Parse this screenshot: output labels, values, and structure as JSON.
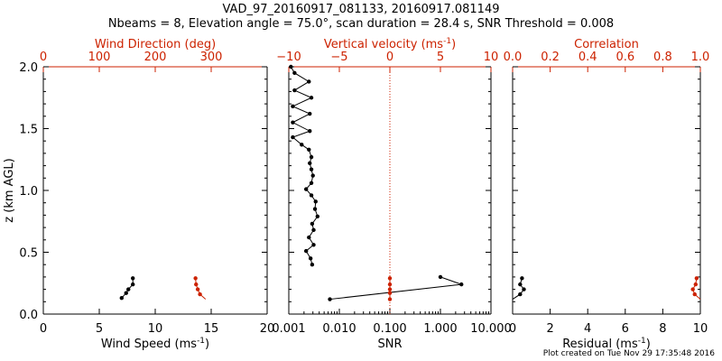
{
  "header": {
    "title": "VAD_97_20160917_081133, 20160917.081149",
    "subtitle": "Nbeams = 8, Elevation angle = 75.0°, scan duration = 28.4 s, SNR Threshold = 0.008"
  },
  "footer": {
    "text": "Plot created on Tue Nov 29 17:35:48 2016"
  },
  "colors": {
    "primary": "#000000",
    "secondary": "#cc2200"
  },
  "chart_data": [
    {
      "type": "line",
      "ylabel": "z (km AGL)",
      "ylim": [
        0,
        2.0
      ],
      "yticks": [
        "0.0",
        "0.5",
        "1.0",
        "1.5",
        "2.0"
      ],
      "bottom_axis": {
        "label": "Wind Speed (ms",
        "label_sup": "-1",
        "label_end": ")",
        "lim": [
          0,
          20
        ],
        "ticks": [
          0,
          5,
          10,
          15,
          20
        ],
        "tick_labels": [
          "0",
          "5",
          "10",
          "15",
          "20"
        ]
      },
      "top_axis": {
        "label": "Wind Direction (deg)",
        "lim": [
          0,
          400
        ],
        "ticks": [
          0,
          100,
          200,
          300
        ],
        "tick_labels": [
          "0",
          "100",
          "200",
          "300"
        ]
      },
      "series": [
        {
          "axis": "bottom",
          "color": "black",
          "points": [
            [
              7.0,
              0.13
            ],
            [
              7.4,
              0.17
            ],
            [
              7.6,
              0.2
            ],
            [
              8.0,
              0.24
            ],
            [
              8.0,
              0.29
            ]
          ]
        },
        {
          "axis": "top",
          "color": "red",
          "line_only_start": 1,
          "points": [
            [
              290,
              0.12
            ],
            [
              280,
              0.16
            ],
            [
              276,
              0.2
            ],
            [
              273,
              0.24
            ],
            [
              272,
              0.29
            ]
          ]
        }
      ]
    },
    {
      "type": "line",
      "ylim": [
        0,
        2.0
      ],
      "bottom_axis": {
        "label": "SNR",
        "scale": "log",
        "lim": [
          0.001,
          10
        ],
        "ticks": [
          0.001,
          0.01,
          0.1,
          1,
          10
        ],
        "tick_labels": [
          "0.001",
          "0.010",
          "0.100",
          "1.000",
          "10.000"
        ]
      },
      "top_axis": {
        "label": "Vertical velocity (ms",
        "label_sup": "-1",
        "label_end": ")",
        "lim": [
          -10,
          10
        ],
        "ticks": [
          -10,
          -5,
          0,
          5,
          10
        ],
        "tick_labels": [
          "−10",
          "−5",
          "0",
          "5",
          "10"
        ]
      },
      "reference_line": {
        "axis": "top",
        "value": 0
      },
      "series": [
        {
          "axis": "bottom",
          "color": "black",
          "name": "snr_profile",
          "points": [
            [
              0.0011,
              2.0
            ],
            [
              0.0013,
              1.95
            ],
            [
              0.0025,
              1.88
            ],
            [
              0.0013,
              1.81
            ],
            [
              0.0028,
              1.75
            ],
            [
              0.0012,
              1.68
            ],
            [
              0.0026,
              1.62
            ],
            [
              0.0012,
              1.55
            ],
            [
              0.0026,
              1.48
            ],
            [
              0.0012,
              1.43
            ],
            [
              0.0018,
              1.37
            ],
            [
              0.0025,
              1.33
            ],
            [
              0.0028,
              1.27
            ],
            [
              0.0026,
              1.22
            ],
            [
              0.0028,
              1.17
            ],
            [
              0.003,
              1.12
            ],
            [
              0.0028,
              1.06
            ],
            [
              0.0022,
              1.01
            ],
            [
              0.0028,
              0.96
            ],
            [
              0.0034,
              0.91
            ],
            [
              0.0033,
              0.85
            ],
            [
              0.0037,
              0.79
            ],
            [
              0.0029,
              0.73
            ],
            [
              0.0031,
              0.68
            ],
            [
              0.0025,
              0.62
            ],
            [
              0.0031,
              0.56
            ],
            [
              0.0022,
              0.51
            ],
            [
              0.0027,
              0.45
            ],
            [
              0.0029,
              0.4
            ]
          ]
        },
        {
          "axis": "bottom",
          "color": "black",
          "name": "snr_low",
          "points": [
            [
              0.0065,
              0.12
            ],
            [
              2.6,
              0.24
            ],
            [
              1.0,
              0.3
            ]
          ]
        },
        {
          "axis": "top",
          "color": "red",
          "points": [
            [
              0,
              0.12
            ],
            [
              0,
              0.17
            ],
            [
              0,
              0.2
            ],
            [
              0,
              0.24
            ],
            [
              0,
              0.29
            ]
          ]
        }
      ]
    },
    {
      "type": "line",
      "ylim": [
        0,
        2.0
      ],
      "bottom_axis": {
        "label": "Residual (ms",
        "label_sup": "-1",
        "label_end": ")",
        "lim": [
          0,
          10
        ],
        "ticks": [
          0,
          2,
          4,
          6,
          8,
          10
        ],
        "tick_labels": [
          "0",
          "2",
          "4",
          "6",
          "8",
          "10"
        ]
      },
      "top_axis": {
        "label": "Correlation",
        "lim": [
          0,
          1.0
        ],
        "ticks": [
          0,
          0.2,
          0.4,
          0.6,
          0.8,
          1.0
        ],
        "tick_labels": [
          "0.0",
          "0.2",
          "0.4",
          "0.6",
          "0.8",
          "1.0"
        ]
      },
      "series": [
        {
          "axis": "bottom",
          "color": "black",
          "line_only_start": 1,
          "points": [
            [
              0.0,
              0.12
            ],
            [
              0.4,
              0.16
            ],
            [
              0.6,
              0.2
            ],
            [
              0.4,
              0.24
            ],
            [
              0.5,
              0.29
            ]
          ]
        },
        {
          "axis": "top",
          "color": "red",
          "line_only_start": 1,
          "points": [
            [
              1.0,
              0.12
            ],
            [
              0.97,
              0.16
            ],
            [
              0.96,
              0.2
            ],
            [
              0.975,
              0.24
            ],
            [
              0.98,
              0.29
            ]
          ]
        }
      ]
    }
  ]
}
